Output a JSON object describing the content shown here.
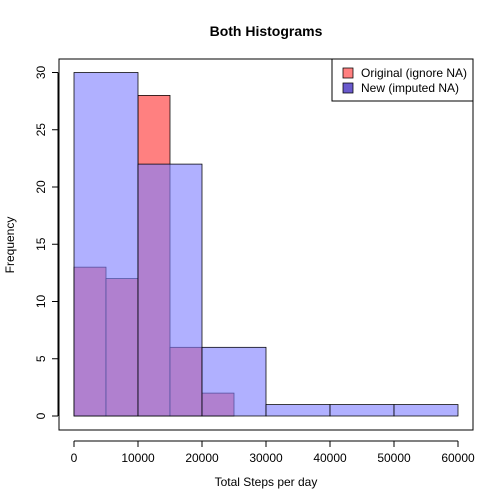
{
  "chart_data": {
    "type": "bar",
    "title": "Both Histograms",
    "xlabel": "Total Steps per day",
    "ylabel": "Frequency",
    "xlim": [
      0,
      60000
    ],
    "ylim": [
      0,
      30
    ],
    "x_ticks": [
      "0",
      "10000",
      "20000",
      "30000",
      "40000",
      "50000",
      "60000"
    ],
    "y_ticks": [
      "0",
      "5",
      "10",
      "15",
      "20",
      "25",
      "30"
    ],
    "legend_position": "top-right",
    "series": [
      {
        "name": "Original (ignore NA)",
        "color": "#ff8080",
        "bins": [
          {
            "x0": 0,
            "x1": 5000,
            "count": 13
          },
          {
            "x0": 5000,
            "x1": 10000,
            "count": 12
          },
          {
            "x0": 10000,
            "x1": 15000,
            "count": 28
          },
          {
            "x0": 15000,
            "x1": 20000,
            "count": 6
          },
          {
            "x0": 20000,
            "x1": 25000,
            "count": 2
          }
        ]
      },
      {
        "name": "New (imputed NA)",
        "color": "#8080ff",
        "bins": [
          {
            "x0": 0,
            "x1": 10000,
            "count": 30
          },
          {
            "x0": 10000,
            "x1": 20000,
            "count": 22
          },
          {
            "x0": 20000,
            "x1": 30000,
            "count": 6
          },
          {
            "x0": 30000,
            "x1": 40000,
            "count": 1
          },
          {
            "x0": 40000,
            "x1": 50000,
            "count": 1
          },
          {
            "x0": 50000,
            "x1": 60000,
            "count": 1
          }
        ]
      }
    ]
  }
}
